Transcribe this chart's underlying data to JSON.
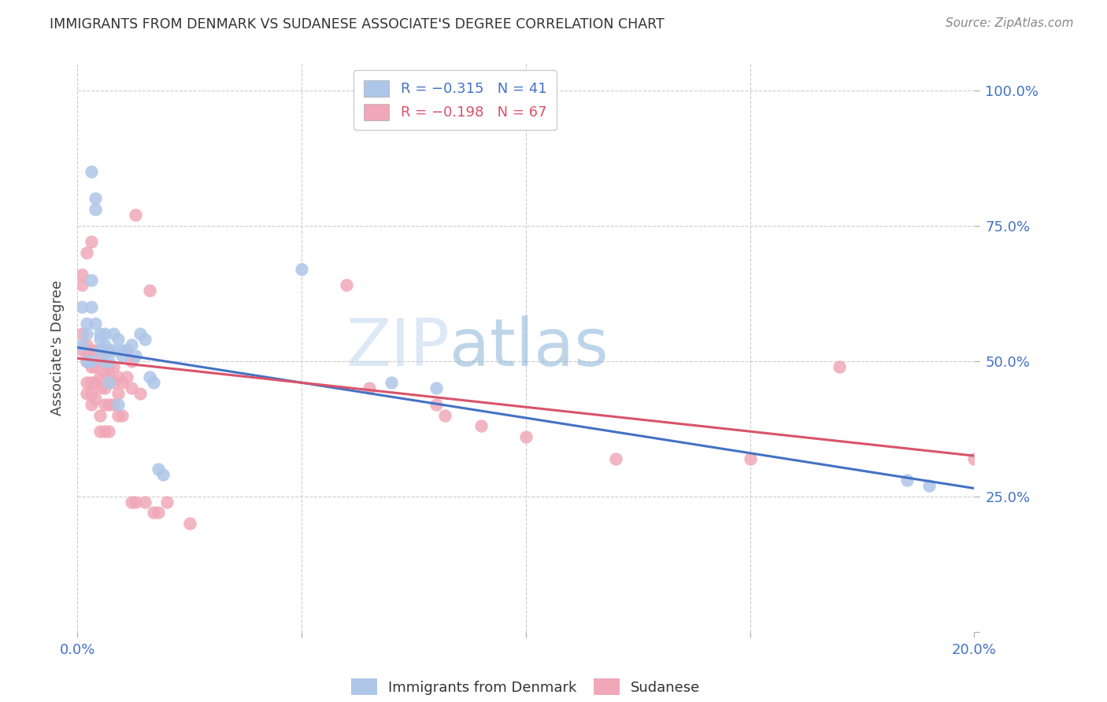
{
  "title": "IMMIGRANTS FROM DENMARK VS SUDANESE ASSOCIATE'S DEGREE CORRELATION CHART",
  "source": "Source: ZipAtlas.com",
  "ylabel": "Associate's Degree",
  "y_ticks": [
    0.0,
    0.25,
    0.5,
    0.75,
    1.0
  ],
  "y_tick_labels": [
    "",
    "25.0%",
    "50.0%",
    "75.0%",
    "100.0%"
  ],
  "x_ticks": [
    0.0,
    0.05,
    0.1,
    0.15,
    0.2
  ],
  "x_tick_labels": [
    "0.0%",
    "",
    "",
    "",
    "20.0%"
  ],
  "blue_scatter": [
    [
      0.001,
      0.53
    ],
    [
      0.001,
      0.6
    ],
    [
      0.002,
      0.55
    ],
    [
      0.002,
      0.5
    ],
    [
      0.002,
      0.57
    ],
    [
      0.003,
      0.65
    ],
    [
      0.003,
      0.6
    ],
    [
      0.003,
      0.5
    ],
    [
      0.003,
      0.85
    ],
    [
      0.004,
      0.78
    ],
    [
      0.004,
      0.57
    ],
    [
      0.004,
      0.8
    ],
    [
      0.005,
      0.54
    ],
    [
      0.005,
      0.52
    ],
    [
      0.005,
      0.55
    ],
    [
      0.006,
      0.53
    ],
    [
      0.006,
      0.5
    ],
    [
      0.006,
      0.55
    ],
    [
      0.007,
      0.52
    ],
    [
      0.007,
      0.5
    ],
    [
      0.007,
      0.46
    ],
    [
      0.008,
      0.55
    ],
    [
      0.008,
      0.52
    ],
    [
      0.009,
      0.54
    ],
    [
      0.009,
      0.42
    ],
    [
      0.01,
      0.52
    ],
    [
      0.01,
      0.51
    ],
    [
      0.011,
      0.52
    ],
    [
      0.012,
      0.53
    ],
    [
      0.013,
      0.51
    ],
    [
      0.014,
      0.55
    ],
    [
      0.015,
      0.54
    ],
    [
      0.016,
      0.47
    ],
    [
      0.017,
      0.46
    ],
    [
      0.018,
      0.3
    ],
    [
      0.019,
      0.29
    ],
    [
      0.05,
      0.67
    ],
    [
      0.07,
      0.46
    ],
    [
      0.08,
      0.45
    ],
    [
      0.185,
      0.28
    ],
    [
      0.19,
      0.27
    ]
  ],
  "pink_scatter": [
    [
      0.001,
      0.52
    ],
    [
      0.001,
      0.55
    ],
    [
      0.001,
      0.66
    ],
    [
      0.001,
      0.64
    ],
    [
      0.002,
      0.52
    ],
    [
      0.002,
      0.53
    ],
    [
      0.002,
      0.5
    ],
    [
      0.002,
      0.46
    ],
    [
      0.002,
      0.44
    ],
    [
      0.002,
      0.7
    ],
    [
      0.003,
      0.72
    ],
    [
      0.003,
      0.52
    ],
    [
      0.003,
      0.49
    ],
    [
      0.003,
      0.46
    ],
    [
      0.003,
      0.44
    ],
    [
      0.003,
      0.42
    ],
    [
      0.004,
      0.52
    ],
    [
      0.004,
      0.49
    ],
    [
      0.004,
      0.46
    ],
    [
      0.004,
      0.43
    ],
    [
      0.005,
      0.5
    ],
    [
      0.005,
      0.47
    ],
    [
      0.005,
      0.45
    ],
    [
      0.005,
      0.4
    ],
    [
      0.005,
      0.37
    ],
    [
      0.006,
      0.52
    ],
    [
      0.006,
      0.48
    ],
    [
      0.006,
      0.45
    ],
    [
      0.006,
      0.42
    ],
    [
      0.006,
      0.37
    ],
    [
      0.007,
      0.52
    ],
    [
      0.007,
      0.49
    ],
    [
      0.007,
      0.47
    ],
    [
      0.007,
      0.42
    ],
    [
      0.007,
      0.37
    ],
    [
      0.008,
      0.49
    ],
    [
      0.008,
      0.46
    ],
    [
      0.008,
      0.42
    ],
    [
      0.009,
      0.47
    ],
    [
      0.009,
      0.44
    ],
    [
      0.009,
      0.4
    ],
    [
      0.01,
      0.46
    ],
    [
      0.01,
      0.4
    ],
    [
      0.011,
      0.52
    ],
    [
      0.011,
      0.47
    ],
    [
      0.012,
      0.5
    ],
    [
      0.012,
      0.45
    ],
    [
      0.012,
      0.24
    ],
    [
      0.013,
      0.77
    ],
    [
      0.013,
      0.24
    ],
    [
      0.014,
      0.44
    ],
    [
      0.015,
      0.24
    ],
    [
      0.016,
      0.63
    ],
    [
      0.017,
      0.22
    ],
    [
      0.018,
      0.22
    ],
    [
      0.02,
      0.24
    ],
    [
      0.025,
      0.2
    ],
    [
      0.06,
      0.64
    ],
    [
      0.065,
      0.45
    ],
    [
      0.08,
      0.42
    ],
    [
      0.082,
      0.4
    ],
    [
      0.09,
      0.38
    ],
    [
      0.1,
      0.36
    ],
    [
      0.12,
      0.32
    ],
    [
      0.15,
      0.32
    ],
    [
      0.17,
      0.49
    ],
    [
      0.2,
      0.32
    ]
  ],
  "blue_line_x": [
    0.0,
    0.2
  ],
  "blue_line_y": [
    0.525,
    0.265
  ],
  "pink_line_x": [
    0.0,
    0.2
  ],
  "pink_line_y": [
    0.505,
    0.325
  ],
  "blue_line_color": "#4472c4",
  "pink_line_color": "#d9536a",
  "blue_scatter_color": "#aec6e8",
  "pink_scatter_color": "#f0a8b8",
  "watermark_zip": "ZIP",
  "watermark_atlas": "atlas",
  "background_color": "#ffffff",
  "grid_color": "#cccccc",
  "title_color": "#333333",
  "source_color": "#888888",
  "tick_color": "#4472c4",
  "ylabel_color": "#444444"
}
